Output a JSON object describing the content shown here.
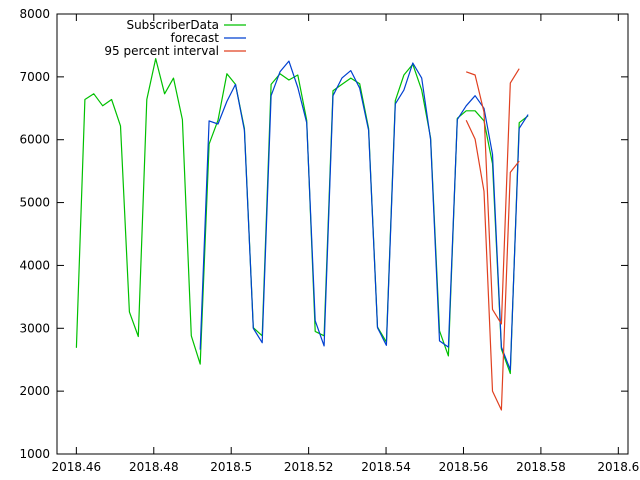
{
  "chart_data": {
    "type": "line",
    "title": "",
    "xlabel": "",
    "ylabel": "",
    "xlim": [
      2018.455,
      2018.6025
    ],
    "ylim": [
      1000,
      8000
    ],
    "x_ticks": [
      2018.46,
      2018.48,
      2018.5,
      2018.52,
      2018.54,
      2018.56,
      2018.58,
      2018.6
    ],
    "x_tick_labels": [
      "2018.46",
      "2018.48",
      "2018.5",
      "2018.52",
      "2018.54",
      "2018.56",
      "2018.58",
      "2018.6"
    ],
    "y_ticks": [
      1000,
      2000,
      3000,
      4000,
      5000,
      6000,
      7000,
      8000
    ],
    "y_tick_labels": [
      "1000",
      "2000",
      "3000",
      "4000",
      "5000",
      "6000",
      "7000",
      "8000"
    ],
    "grid": false,
    "legend_position": "top-left",
    "series": [
      {
        "name": "SubscriberData",
        "color": "#00c000",
        "points": [
          [
            2018.46,
            2690
          ],
          [
            2018.4622,
            6640
          ],
          [
            2018.4645,
            6730
          ],
          [
            2018.4668,
            6540
          ],
          [
            2018.4691,
            6640
          ],
          [
            2018.4714,
            6220
          ],
          [
            2018.4737,
            3260
          ],
          [
            2018.476,
            2870
          ],
          [
            2018.4782,
            6640
          ],
          [
            2018.4805,
            7290
          ],
          [
            2018.4828,
            6730
          ],
          [
            2018.4851,
            6980
          ],
          [
            2018.4874,
            6320
          ],
          [
            2018.4897,
            2880
          ],
          [
            2018.492,
            2430
          ],
          [
            2018.4943,
            5930
          ],
          [
            2018.4966,
            6310
          ],
          [
            2018.4989,
            7050
          ],
          [
            2018.5011,
            6880
          ],
          [
            2018.5034,
            6180
          ],
          [
            2018.5057,
            3010
          ],
          [
            2018.508,
            2880
          ],
          [
            2018.5103,
            6880
          ],
          [
            2018.5126,
            7050
          ],
          [
            2018.5149,
            6950
          ],
          [
            2018.5172,
            7030
          ],
          [
            2018.5195,
            6310
          ],
          [
            2018.5217,
            2950
          ],
          [
            2018.524,
            2880
          ],
          [
            2018.5263,
            6780
          ],
          [
            2018.5286,
            6880
          ],
          [
            2018.5309,
            6980
          ],
          [
            2018.5332,
            6890
          ],
          [
            2018.5355,
            6180
          ],
          [
            2018.5378,
            3020
          ],
          [
            2018.5401,
            2780
          ],
          [
            2018.5424,
            6620
          ],
          [
            2018.5446,
            7030
          ],
          [
            2018.5469,
            7200
          ],
          [
            2018.5492,
            6790
          ],
          [
            2018.5515,
            6030
          ],
          [
            2018.5538,
            2960
          ],
          [
            2018.5561,
            2560
          ],
          [
            2018.5584,
            6340
          ],
          [
            2018.5607,
            6460
          ],
          [
            2018.563,
            6460
          ],
          [
            2018.5653,
            6300
          ],
          [
            2018.5675,
            5620
          ],
          [
            2018.5698,
            2670
          ],
          [
            2018.5721,
            2280
          ],
          [
            2018.5744,
            6270
          ],
          [
            2018.5767,
            6380
          ]
        ]
      },
      {
        "name": "forecast",
        "color": "#0040d0",
        "points": [
          [
            2018.492,
            2660
          ],
          [
            2018.4943,
            6300
          ],
          [
            2018.4966,
            6250
          ],
          [
            2018.4989,
            6610
          ],
          [
            2018.5011,
            6880
          ],
          [
            2018.5034,
            6150
          ],
          [
            2018.5057,
            3000
          ],
          [
            2018.508,
            2770
          ],
          [
            2018.5103,
            6700
          ],
          [
            2018.5126,
            7080
          ],
          [
            2018.5149,
            7250
          ],
          [
            2018.5172,
            6830
          ],
          [
            2018.5195,
            6270
          ],
          [
            2018.5217,
            3120
          ],
          [
            2018.524,
            2720
          ],
          [
            2018.5263,
            6700
          ],
          [
            2018.5286,
            6980
          ],
          [
            2018.5309,
            7100
          ],
          [
            2018.5332,
            6820
          ],
          [
            2018.5355,
            6150
          ],
          [
            2018.5378,
            3010
          ],
          [
            2018.5401,
            2730
          ],
          [
            2018.5424,
            6570
          ],
          [
            2018.5446,
            6790
          ],
          [
            2018.5469,
            7220
          ],
          [
            2018.5492,
            6980
          ],
          [
            2018.5515,
            6000
          ],
          [
            2018.5538,
            2800
          ],
          [
            2018.5561,
            2700
          ],
          [
            2018.5584,
            6320
          ],
          [
            2018.5607,
            6540
          ],
          [
            2018.563,
            6700
          ],
          [
            2018.5653,
            6500
          ],
          [
            2018.5675,
            5770
          ],
          [
            2018.5698,
            2700
          ],
          [
            2018.5721,
            2340
          ],
          [
            2018.5744,
            6180
          ],
          [
            2018.5767,
            6400
          ]
        ]
      },
      {
        "name": "95 percent interval",
        "color": "#e04020",
        "segments": [
          [
            [
              2018.5607,
              7080
            ],
            [
              2018.563,
              7030
            ],
            [
              2018.5653,
              6440
            ],
            [
              2018.5675,
              3300
            ],
            [
              2018.5698,
              3070
            ],
            [
              2018.5721,
              6900
            ],
            [
              2018.5744,
              7130
            ]
          ],
          [
            [
              2018.5607,
              6310
            ],
            [
              2018.563,
              6010
            ],
            [
              2018.5653,
              5180
            ],
            [
              2018.5675,
              2000
            ],
            [
              2018.5698,
              1700
            ],
            [
              2018.5721,
              5480
            ],
            [
              2018.5744,
              5660
            ]
          ]
        ]
      }
    ]
  }
}
